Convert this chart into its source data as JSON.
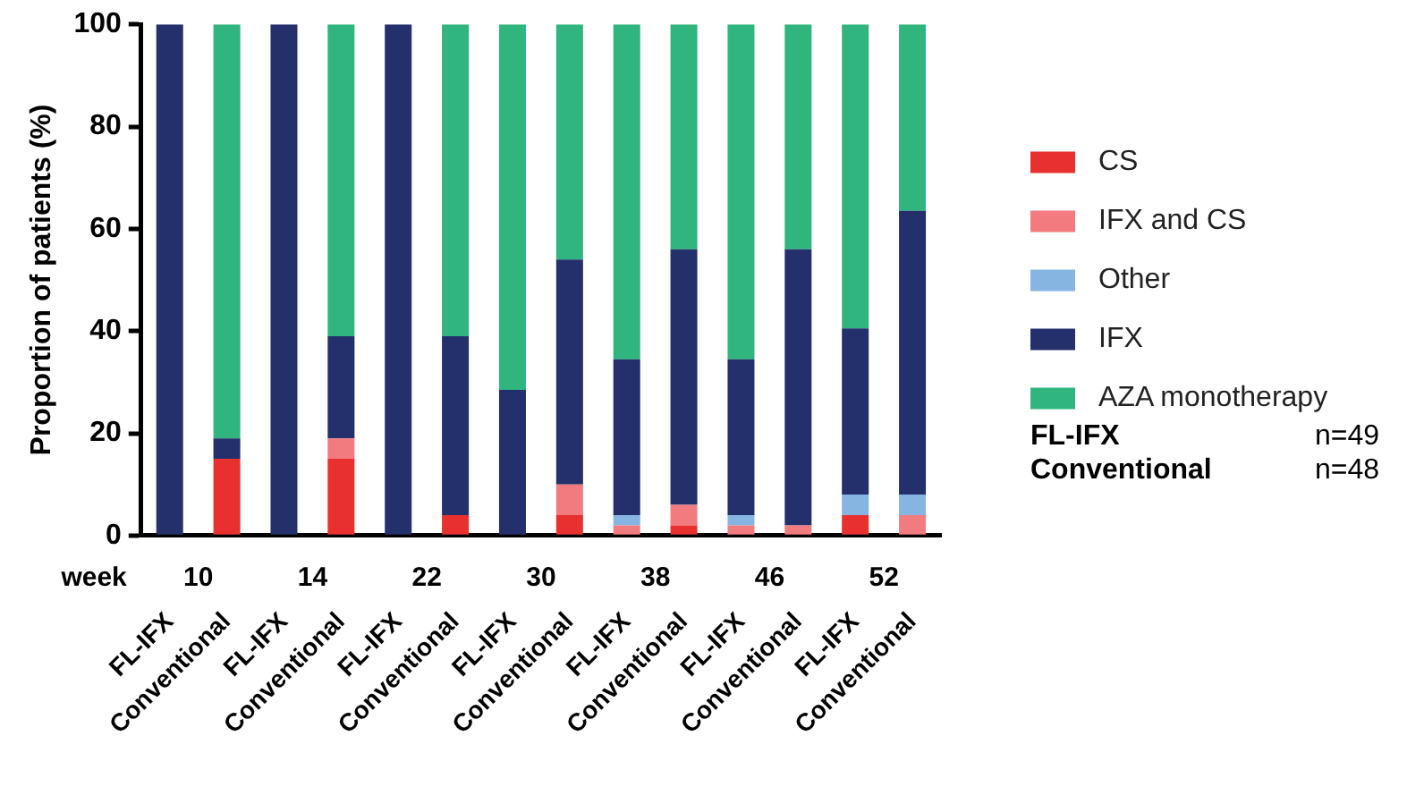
{
  "chart_data": {
    "type": "bar",
    "stacked": true,
    "ylabel": "Proportion of patients (%)",
    "categories": [
      "FL-IFX",
      "Conventional",
      "FL-IFX",
      "Conventional",
      "FL-IFX",
      "Conventional",
      "FL-IFX",
      "Conventional",
      "FL-IFX",
      "Conventional",
      "FL-IFX",
      "Conventional",
      "FL-IFX",
      "Conventional"
    ],
    "series": [
      {
        "name": "CS",
        "color": "#e8312f",
        "values": [
          0,
          15,
          0,
          15,
          0,
          4,
          0,
          4,
          0,
          2,
          0,
          0,
          4,
          0
        ]
      },
      {
        "name": "IFX and CS",
        "color": "#f27b7f",
        "values": [
          0,
          0,
          0,
          4,
          0,
          0,
          0,
          6,
          2,
          4,
          2,
          2,
          0,
          4
        ]
      },
      {
        "name": "Other",
        "color": "#85b5e0",
        "values": [
          0,
          0,
          0,
          0,
          0,
          0,
          0,
          0,
          2,
          0,
          2,
          0,
          4,
          4
        ]
      },
      {
        "name": "IFX",
        "color": "#23306b",
        "values": [
          100,
          4,
          100,
          20,
          100,
          35,
          28.5,
          44,
          30.5,
          50,
          30.5,
          54,
          32.5,
          55.5
        ]
      },
      {
        "name": "AZA monotherapy",
        "color": "#2fb57d",
        "values": [
          0,
          81,
          0,
          61,
          0,
          61,
          71.5,
          46,
          65.5,
          44,
          65.5,
          44,
          59.5,
          36.5
        ]
      }
    ],
    "ylim": [
      0,
      100
    ],
    "yticks": [
      0,
      20,
      40,
      60,
      80,
      100
    ],
    "grid": false,
    "legend": "right",
    "annotations": [
      "week",
      "10",
      "14",
      "22",
      "30",
      "38",
      "46",
      "52",
      "FL-IFX",
      "n=49",
      "Conventional",
      "n=48"
    ]
  }
}
